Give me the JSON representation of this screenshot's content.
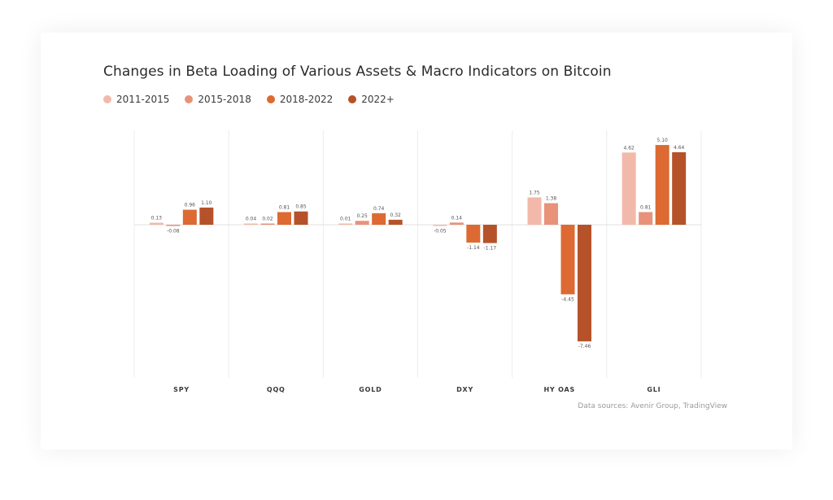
{
  "chart_data": {
    "type": "bar",
    "title": "Changes in Beta Loading of Various Assets & Macro Indicators on Bitcoin",
    "categories": [
      "SPY",
      "QQQ",
      "GOLD",
      "DXY",
      "HY OAS",
      "GLI"
    ],
    "series": [
      {
        "name": "2011-2015",
        "color": "#f2b9aa",
        "values": [
          0.13,
          0.04,
          0.01,
          -0.05,
          1.75,
          4.62
        ]
      },
      {
        "name": "2015-2018",
        "color": "#e8927a",
        "values": [
          -0.08,
          0.02,
          0.25,
          0.14,
          1.38,
          0.81
        ]
      },
      {
        "name": "2018-2022",
        "color": "#dc6a32",
        "values": [
          0.96,
          0.81,
          0.74,
          -1.14,
          -4.45,
          5.1
        ]
      },
      {
        "name": "2022+",
        "color": "#b5522a",
        "values": [
          1.1,
          0.85,
          0.32,
          -1.17,
          -7.46,
          4.64
        ]
      }
    ],
    "value_labels": [
      [
        "0.13",
        "0.04",
        "0.01",
        "-0.05",
        "1.75",
        "4.62"
      ],
      [
        "-0.08",
        "0.02",
        "0.25",
        "0.14",
        "1.38",
        "0.81"
      ],
      [
        "0.96",
        "0.81",
        "0.74",
        "-1.14",
        "-4.45",
        "5.10"
      ],
      [
        "1.10",
        "0.85",
        "0.32",
        "-1.17",
        "-7.46",
        "4.64"
      ]
    ],
    "ylim": [
      -10,
      5.5
    ],
    "grid": "vertical separators between categories",
    "legend_position": "top-left",
    "xlabel": "",
    "ylabel": ""
  },
  "source_note": "Data sources: Avenir Group, TradingView"
}
